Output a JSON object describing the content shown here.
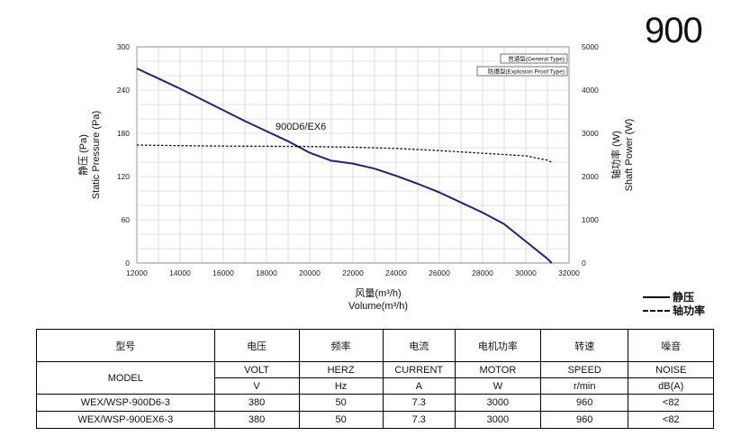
{
  "page_title": "900",
  "chart_data": {
    "type": "line",
    "xlabel_cn": "风量(m³/h)",
    "xlabel_en": "Volume(m³/h)",
    "ylabel_cn": "静压 (Pa)",
    "ylabel_en": "Static Pressure (Pa)",
    "y2label_cn": "轴功率 (W)",
    "y2label_en": "Shaft  Power (W)",
    "xlim": [
      12000,
      32000
    ],
    "ylim": [
      0,
      300
    ],
    "y2lim": [
      0,
      5000
    ],
    "x_ticks": [
      "12000",
      "14000",
      "16000",
      "18000",
      "20000",
      "22000",
      "24000",
      "26000",
      "28000",
      "30000",
      "32000"
    ],
    "y_ticks": [
      "0",
      "60",
      "120",
      "180",
      "240",
      "300"
    ],
    "y2_ticks": [
      "0",
      "1000",
      "2000",
      "3000",
      "4000",
      "5000"
    ],
    "grid": true,
    "box_legend": [
      "普通型(General Type)",
      "防爆型(Explosion Proof Type)"
    ],
    "curve_label": "900D6/EX6",
    "series": [
      {
        "name": "静压",
        "axis": "left",
        "style": "solid",
        "x": [
          12000,
          13000,
          14000,
          15000,
          16000,
          17000,
          18000,
          19000,
          20000,
          21000,
          22000,
          23000,
          24000,
          25000,
          26000,
          27000,
          28000,
          29000,
          30000,
          31000,
          31200
        ],
        "y": [
          270,
          256,
          242,
          227,
          212,
          197,
          183,
          169,
          153,
          142,
          138,
          131,
          121,
          110,
          98,
          84,
          70,
          54,
          30,
          6,
          0
        ]
      },
      {
        "name": "轴功率",
        "axis": "right",
        "style": "dashed",
        "x": [
          12000,
          14000,
          16000,
          18000,
          20000,
          22000,
          24000,
          26000,
          28000,
          30000,
          31000,
          31200
        ],
        "y": [
          2730,
          2715,
          2705,
          2700,
          2695,
          2680,
          2650,
          2600,
          2540,
          2480,
          2380,
          2330
        ]
      }
    ]
  },
  "legend": {
    "solid_label": "静压",
    "dashed_label": "轴功率"
  },
  "table": {
    "headers_cn": [
      "型号",
      "电压",
      "频率",
      "电流",
      "电机功率",
      "转速",
      "噪音"
    ],
    "model_en": "MODEL",
    "headers_en": [
      "VOLT",
      "HERZ",
      "CURRENT",
      "MOTOR",
      "SPEED",
      "NOISE"
    ],
    "units": [
      "V",
      "Hz",
      "A",
      "W",
      "r/min",
      "dB(A)"
    ],
    "rows": [
      [
        "WEX/WSP-900D6-3",
        "380",
        "50",
        "7.3",
        "3000",
        "960",
        "<82"
      ],
      [
        "WEX/WSP-900EX6-3",
        "380",
        "50",
        "7.3",
        "3000",
        "960",
        "<82"
      ]
    ]
  }
}
